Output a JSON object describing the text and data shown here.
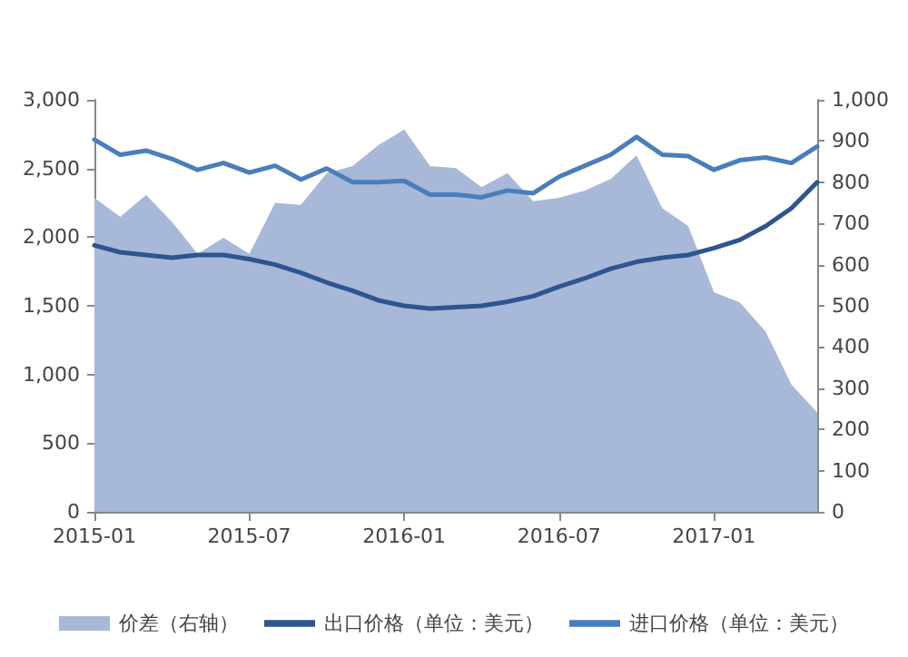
{
  "chart_data": {
    "type": "line",
    "categories": [
      "2015-01",
      null,
      null,
      null,
      null,
      null,
      "2015-07",
      null,
      null,
      null,
      null,
      null,
      "2016-01",
      null,
      null,
      null,
      null,
      null,
      "2016-07",
      null,
      null,
      null,
      null,
      null,
      "2017-01",
      null,
      null,
      null,
      null
    ],
    "series": [
      {
        "name": "价差（右轴）",
        "type": "area",
        "axis": "y2",
        "color": "#a7b8d8",
        "values": [
          762,
          716,
          769,
          704,
          626,
          665,
          626,
          750,
          745,
          822,
          839,
          890,
          928,
          839,
          834,
          788,
          822,
          754,
          762,
          780,
          808,
          865,
          737,
          694,
          533,
          508,
          438,
          309,
          241
        ]
      },
      {
        "name": "出口价格（单位：美元）",
        "color": "#2e5590",
        "values": [
          1940,
          1890,
          1870,
          1850,
          1870,
          1870,
          1840,
          1800,
          1740,
          1670,
          1610,
          1540,
          1500,
          1480,
          1490,
          1500,
          1530,
          1570,
          1640,
          1700,
          1770,
          1820,
          1850,
          1870,
          1920,
          1980,
          2080,
          2210,
          2400
        ]
      },
      {
        "name": "进口价格（单位：美元）",
        "color": "#4a7ebb",
        "values": [
          2710,
          2600,
          2630,
          2570,
          2490,
          2540,
          2470,
          2520,
          2420,
          2500,
          2400,
          2400,
          2410,
          2310,
          2310,
          2290,
          2340,
          2320,
          2440,
          2520,
          2600,
          2730,
          2600,
          2590,
          2490,
          2560,
          2580,
          2540,
          2660
        ]
      }
    ],
    "ylim": [
      0,
      3000
    ],
    "yticks": [
      {
        "value": 0,
        "label": "0"
      },
      {
        "value": 500,
        "label": "500"
      },
      {
        "value": 1000,
        "label": "1,000"
      },
      {
        "value": 1500,
        "label": "1,500"
      },
      {
        "value": 2000,
        "label": "2,000"
      },
      {
        "value": 2500,
        "label": "2,500"
      },
      {
        "value": 3000,
        "label": "3,000"
      }
    ],
    "y2lim": [
      0,
      1000
    ],
    "y2ticks": [
      {
        "value": 0,
        "label": "0"
      },
      {
        "value": 100,
        "label": "100"
      },
      {
        "value": 200,
        "label": "200"
      },
      {
        "value": 300,
        "label": "300"
      },
      {
        "value": 400,
        "label": "400"
      },
      {
        "value": 500,
        "label": "500"
      },
      {
        "value": 600,
        "label": "600"
      },
      {
        "value": 700,
        "label": "700"
      },
      {
        "value": 800,
        "label": "800"
      },
      {
        "value": 900,
        "label": "900"
      },
      {
        "value": 1000,
        "label": "1,000"
      }
    ],
    "grid": false,
    "legend": "bottom",
    "marker": "none",
    "line_style": "solid"
  }
}
